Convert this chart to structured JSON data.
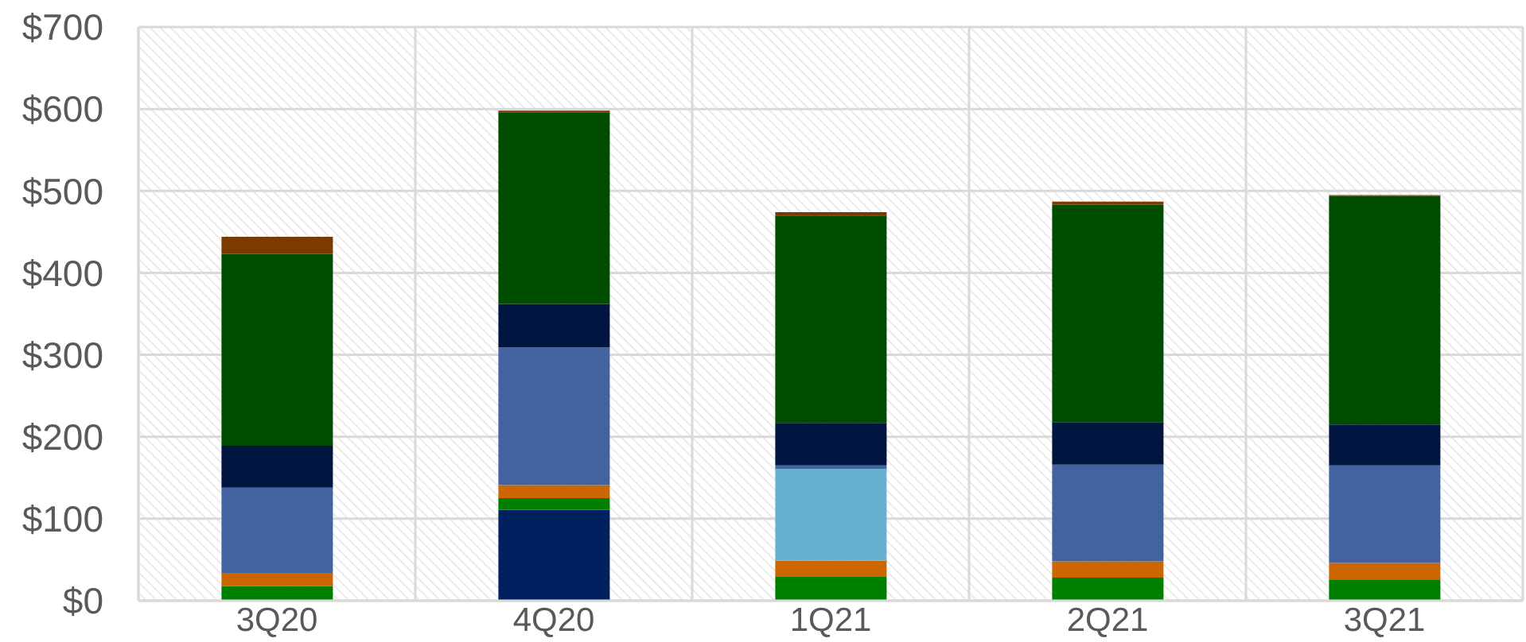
{
  "chart_data": {
    "type": "bar",
    "stacked": true,
    "grid": true,
    "categories": [
      "3Q20",
      "4Q20",
      "1Q21",
      "2Q21",
      "3Q21"
    ],
    "series": [
      {
        "color": "#002060",
        "values": [
          null,
          111,
          null,
          null,
          null
        ]
      },
      {
        "color": "#008000",
        "values": [
          18,
          14,
          29,
          28,
          26
        ]
      },
      {
        "color": "#cc6600",
        "values": [
          16,
          16,
          20,
          20,
          20
        ]
      },
      {
        "color": "#66b0d0",
        "values": [
          null,
          null,
          112,
          null,
          null
        ]
      },
      {
        "color": "#4262a0",
        "values": [
          104,
          168,
          4,
          118,
          119
        ]
      },
      {
        "color": "#001540",
        "values": [
          51,
          53,
          52,
          52,
          50
        ]
      },
      {
        "color": "#004c00",
        "values": [
          234,
          234,
          253,
          265,
          279
        ]
      },
      {
        "color": "#7b3b00",
        "values": [
          21,
          2,
          4,
          4,
          1
        ]
      }
    ],
    "ylim": [
      0,
      700
    ],
    "yticks": [
      {
        "value": 0,
        "label": "$0"
      },
      {
        "value": 100,
        "label": "$100"
      },
      {
        "value": 200,
        "label": "$200"
      },
      {
        "value": 300,
        "label": "$300"
      },
      {
        "value": 400,
        "label": "$400"
      },
      {
        "value": 500,
        "label": "$500"
      },
      {
        "value": 600,
        "label": "$600"
      },
      {
        "value": 700,
        "label": "$700"
      }
    ]
  }
}
